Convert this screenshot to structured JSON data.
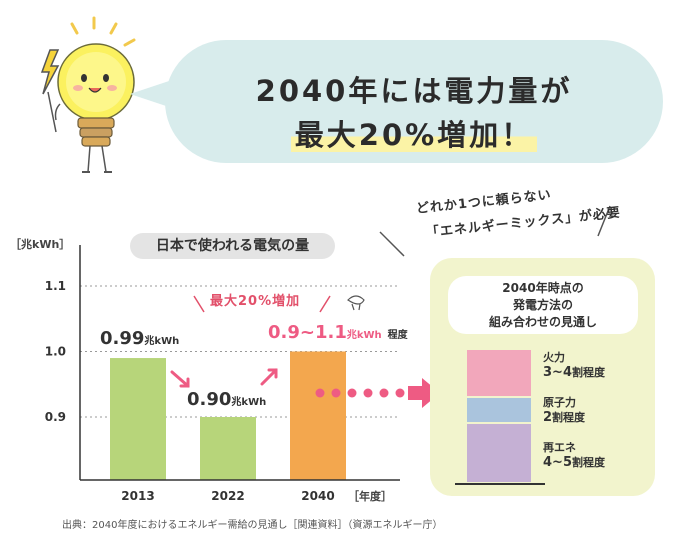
{
  "headline": {
    "line1": "2040年には電力量が",
    "line2": "最大20%増加！"
  },
  "chart_data": {
    "type": "bar",
    "title": "日本で使われる電気の量",
    "ylabel": "［兆kWh］",
    "xlabel": "［年度］",
    "categories": [
      "2013",
      "2022",
      "2040"
    ],
    "values": [
      0.99,
      0.9,
      1.0
    ],
    "range_2040": [
      0.9,
      1.1
    ],
    "ylim": [
      0.85,
      1.15
    ],
    "yticks": [
      "1.1",
      "1.0",
      "0.9"
    ],
    "ytick_values": [
      1.1,
      1.0,
      0.9
    ],
    "grid": true,
    "labels": [
      {
        "value": "0.99",
        "unit": "兆kWh"
      },
      {
        "value": "0.90",
        "unit": "兆kWh"
      },
      {
        "value": "0.9~1.1",
        "unit": "兆kWh",
        "note": "程度"
      }
    ],
    "annotation": "最大20%増加",
    "colors": {
      "green": "#b7d57a",
      "orange": "#f3a74e",
      "pink": "#ee5b83"
    }
  },
  "slogan": {
    "line1": "どれか1つに頼らない",
    "line2": "「エネルギーミックス」が必要"
  },
  "mix_panel": {
    "title_line1": "2040年時点の",
    "title_line2": "発電方法の",
    "title_line3": "組み合わせの見通し",
    "items": [
      {
        "name": "火力",
        "share": "3~4",
        "suffix": "割程度",
        "color": "#f2a7bb"
      },
      {
        "name": "原子力",
        "share": "2",
        "suffix": "割程度",
        "color": "#aac4dd"
      },
      {
        "name": "再エネ",
        "share": "4~5",
        "suffix": "割程度",
        "color": "#c5b0d4"
      }
    ]
  },
  "source": "出典：2040年度におけるエネルギー需給の見通し［関連資料］（資源エネルギー庁）"
}
